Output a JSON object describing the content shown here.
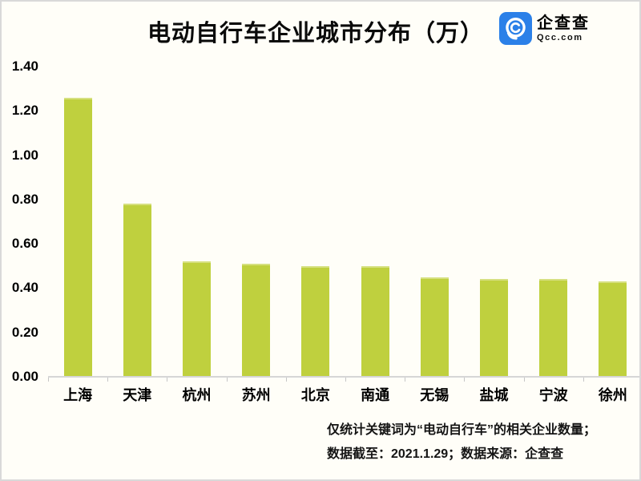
{
  "header": {
    "title": "电动自行车企业城市分布（万）",
    "logo": {
      "name": "企查查",
      "domain": "Qcc.com",
      "brand_color": "#2b80e8",
      "icon": "qcc-magnifier-icon"
    }
  },
  "chart_data": {
    "type": "bar",
    "title": "电动自行车企业城市分布（万）",
    "categories": [
      "上海",
      "天津",
      "杭州",
      "苏州",
      "北京",
      "南通",
      "无锡",
      "盐城",
      "宁波",
      "徐州"
    ],
    "values": [
      1.26,
      0.78,
      0.52,
      0.51,
      0.5,
      0.5,
      0.45,
      0.44,
      0.44,
      0.43
    ],
    "xlabel": "",
    "ylabel": "",
    "ylim": [
      0,
      1.4
    ],
    "ytick_step": 0.2,
    "ytick_labels": [
      "0.00",
      "0.20",
      "0.40",
      "0.60",
      "0.80",
      "1.00",
      "1.20",
      "1.40"
    ],
    "bar_color": "#bfd03e",
    "axis_color": "#d6d6d6",
    "grid": false,
    "legend": false
  },
  "footnote": {
    "line1": "仅统计关键词为“电动自行车”的相关企业数量；",
    "line2": "数据截至：2021.1.29；数据来源：企查查"
  }
}
